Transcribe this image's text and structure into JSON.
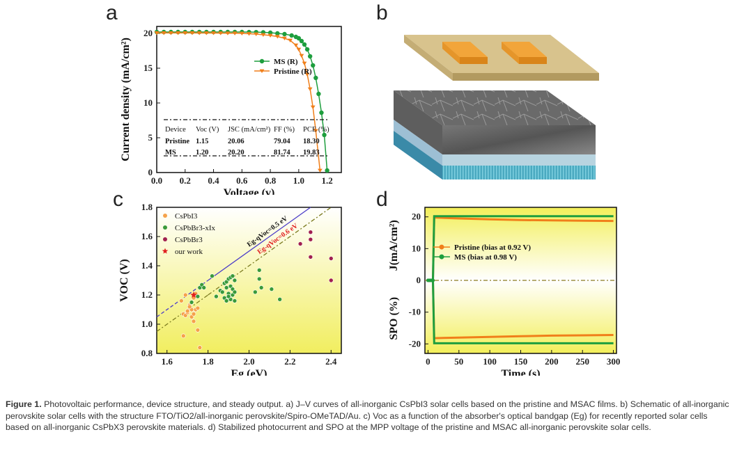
{
  "panel_letters": [
    "a",
    "b",
    "c",
    "d"
  ],
  "caption": {
    "label": "Figure 1.",
    "text": "Photovoltaic performance, device structure, and steady output. a) J–V curves of all-inorganic CsPbI3 solar cells based on the pristine and MSAC films. b) Schematic of all-inorganic perovskite solar cells with the structure FTO/TiO2/all-inorganic perovskite/Spiro-OMeTAD/Au. c) Voc as a function of the absorber's optical bandgap (Eg) for recently reported solar cells based on all-inorganic CsPbX3 perovskite materials. d) Stabilized photocurrent and SPO at the MPP voltage of the pristine and MSAC all-inorganic perovskite solar cells."
  },
  "chart_data": [
    {
      "panel": "a",
      "type": "line",
      "xlabel": "Voltage (v)",
      "ylabel": "Current density (mA/cm²)",
      "xlim": [
        0,
        1.3
      ],
      "ylim": [
        0,
        21
      ],
      "xticks": [
        "0.0",
        "0.2",
        "0.4",
        "0.6",
        "0.8",
        "1.0",
        "1.2"
      ],
      "yticks": [
        "0",
        "5",
        "10",
        "15",
        "20"
      ],
      "legend_position": "right",
      "series": [
        {
          "name": "MS (R)",
          "color": "#1e9e3e",
          "marker": "circle",
          "x": [
            0,
            0.05,
            0.1,
            0.15,
            0.2,
            0.25,
            0.3,
            0.35,
            0.4,
            0.45,
            0.5,
            0.55,
            0.6,
            0.65,
            0.7,
            0.75,
            0.8,
            0.85,
            0.9,
            0.95,
            0.98,
            1.0,
            1.02,
            1.04,
            1.06,
            1.08,
            1.1,
            1.12,
            1.14,
            1.16,
            1.18,
            1.2
          ],
          "y": [
            20.2,
            20.2,
            20.2,
            20.2,
            20.2,
            20.2,
            20.2,
            20.2,
            20.2,
            20.2,
            20.2,
            20.2,
            20.2,
            20.19,
            20.18,
            20.15,
            20.1,
            20.0,
            19.9,
            19.7,
            19.5,
            19.3,
            18.9,
            18.4,
            17.7,
            16.7,
            15.4,
            13.6,
            11.3,
            8.6,
            5.4,
            0.3
          ]
        },
        {
          "name": "Pristine (R)",
          "color": "#f07f1a",
          "marker": "triangle-down",
          "x": [
            0,
            0.05,
            0.1,
            0.15,
            0.2,
            0.25,
            0.3,
            0.35,
            0.4,
            0.45,
            0.5,
            0.55,
            0.6,
            0.65,
            0.7,
            0.75,
            0.8,
            0.85,
            0.9,
            0.94,
            0.98,
            1.0,
            1.02,
            1.04,
            1.06,
            1.08,
            1.1,
            1.12,
            1.15
          ],
          "y": [
            20.06,
            20.06,
            20.06,
            20.06,
            20.06,
            20.06,
            20.05,
            20.05,
            20.05,
            20.04,
            20.03,
            20.02,
            20.0,
            19.95,
            19.9,
            19.8,
            19.7,
            19.55,
            19.3,
            19.0,
            18.3,
            17.7,
            16.8,
            15.7,
            14.1,
            12.0,
            9.4,
            6.0,
            0.3
          ]
        }
      ],
      "table": {
        "headers": [
          "Device",
          "Voc (V)",
          "JSC (mA/cm²)",
          "FF (%)",
          "PCE (%)"
        ],
        "rows": [
          [
            "Pristine",
            "1.15",
            "20.06",
            "79.04",
            "18.30"
          ],
          [
            "MS",
            "1.20",
            "20.20",
            "81.74",
            "19.83"
          ]
        ]
      }
    },
    {
      "panel": "c",
      "type": "scatter",
      "xlabel": "Eg (eV)",
      "ylabel": "VOC (V)",
      "xlim": [
        1.55,
        2.45
      ],
      "ylim": [
        0.8,
        1.8
      ],
      "xticks": [
        "1.6",
        "1.8",
        "2.0",
        "2.2",
        "2.4"
      ],
      "yticks": [
        "0.8",
        "1.0",
        "1.2",
        "1.4",
        "1.6",
        "1.8"
      ],
      "legend_position": "top-left",
      "lines": [
        {
          "label": "Eg-qVoc=0.5 eV",
          "offset": 0.5,
          "color": "#4b3cc8",
          "style": "solid-dash"
        },
        {
          "label": "Eg-qVoc=0.6 eV",
          "offset": 0.6,
          "color": "#7a7a1e",
          "style": "solid-dashdot"
        }
      ],
      "series": [
        {
          "name": "CsPbI3",
          "color": "#f5a24a",
          "x": [
            1.67,
            1.68,
            1.69,
            1.7,
            1.71,
            1.72,
            1.72,
            1.73,
            1.73,
            1.74,
            1.74,
            1.75,
            1.76,
            1.68,
            1.7,
            1.73,
            1.75,
            1.74,
            1.69,
            1.71
          ],
          "y": [
            1.16,
            1.07,
            1.06,
            1.08,
            1.13,
            1.1,
            1.05,
            1.02,
            1.07,
            1.19,
            1.1,
            0.96,
            0.84,
            0.92,
            1.09,
            1.18,
            1.11,
            1.21,
            1.2,
            1.12
          ]
        },
        {
          "name": "CsPbBr3-xIx",
          "color": "#3a9a3a",
          "x": [
            1.76,
            1.77,
            1.82,
            1.84,
            1.86,
            1.87,
            1.88,
            1.88,
            1.89,
            1.89,
            1.9,
            1.9,
            1.91,
            1.91,
            1.91,
            1.92,
            1.92,
            1.92,
            1.93,
            1.93,
            1.93,
            1.9,
            1.89,
            2.03,
            2.05,
            2.05,
            2.06,
            2.11,
            2.15,
            1.72,
            1.75,
            1.78
          ],
          "y": [
            1.25,
            1.27,
            1.33,
            1.19,
            1.23,
            1.22,
            1.28,
            1.18,
            1.29,
            1.16,
            1.31,
            1.21,
            1.32,
            1.26,
            1.17,
            1.33,
            1.24,
            1.2,
            1.3,
            1.22,
            1.16,
            1.19,
            1.25,
            1.22,
            1.31,
            1.37,
            1.25,
            1.24,
            1.17,
            1.15,
            1.19,
            1.25
          ]
        },
        {
          "name": "CsPbBr3",
          "color": "#a02050",
          "x": [
            2.25,
            2.3,
            2.3,
            2.3,
            2.4,
            2.4
          ],
          "y": [
            1.55,
            1.63,
            1.58,
            1.46,
            1.45,
            1.3
          ]
        },
        {
          "name": "our work",
          "color": "#e02020",
          "marker": "star",
          "x": [
            1.73
          ],
          "y": [
            1.2
          ]
        }
      ]
    },
    {
      "panel": "d",
      "type": "line",
      "xlabel": "Time (s)",
      "ylabel_top": "J(mA/cm²)",
      "ylabel_bottom": "SPO (%)",
      "xlim": [
        -5,
        305
      ],
      "ylim": [
        -23,
        23
      ],
      "xticks": [
        "0",
        "50",
        "100",
        "150",
        "200",
        "250",
        "300"
      ],
      "yticks": [
        "-20",
        "-10",
        "0",
        "10",
        "20"
      ],
      "legend_position": "center",
      "series": [
        {
          "name": "Pristine (bias at 0.92 V)",
          "color": "#f07f1a",
          "marker": "circle",
          "x": [
            0,
            2,
            4,
            6,
            8,
            10,
            50,
            100,
            150,
            200,
            250,
            300
          ],
          "y_J": [
            0,
            0,
            0,
            0,
            0,
            19.8,
            19.5,
            19.2,
            19.0,
            18.9,
            18.8,
            18.7
          ],
          "y_SPO": [
            0,
            0,
            0,
            0,
            0,
            -18.2,
            -18.0,
            -17.8,
            -17.6,
            -17.4,
            -17.3,
            -17.2
          ]
        },
        {
          "name": "MS (bias at 0.98 V)",
          "color": "#1e9e3e",
          "marker": "circle",
          "x": [
            0,
            2,
            4,
            6,
            8,
            10,
            50,
            100,
            150,
            200,
            250,
            300
          ],
          "y_J": [
            0,
            0,
            0,
            0,
            0,
            20.2,
            20.2,
            20.2,
            20.2,
            20.2,
            20.2,
            20.2
          ],
          "y_SPO": [
            0,
            0,
            0,
            0,
            0,
            -19.8,
            -19.8,
            -19.8,
            -19.8,
            -19.8,
            -19.8,
            -19.8
          ]
        }
      ]
    }
  ]
}
